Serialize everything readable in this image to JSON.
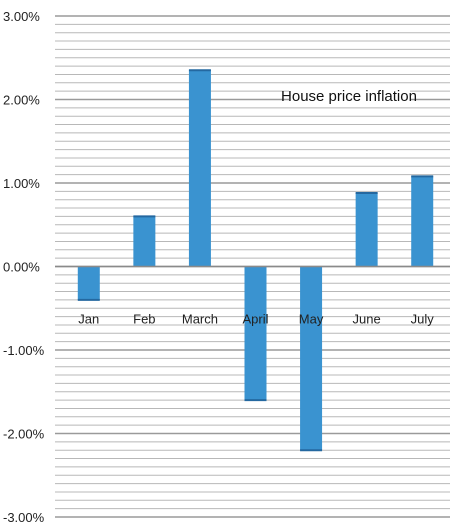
{
  "chart_data": {
    "type": "bar",
    "title": "House price inflation",
    "xlabel": "",
    "ylabel": "",
    "categories": [
      "Jan",
      "Feb",
      "March",
      "April",
      "May",
      "June",
      "July"
    ],
    "values": [
      -0.4,
      0.6,
      2.35,
      -1.6,
      -2.2,
      0.88,
      1.08
    ],
    "ylim": [
      -3.0,
      3.0
    ],
    "y_ticks": [
      3.0,
      2.0,
      1.0,
      0.0,
      -1.0,
      -2.0,
      -3.0
    ],
    "y_tick_labels": [
      "3.00%",
      "2.00%",
      "1.00%",
      "0.00%",
      "-1.00%",
      "-2.00%",
      "-3.00%"
    ],
    "grid": true,
    "colors": {
      "bar": "#3a93d0",
      "bar_edge": "#2468a0",
      "grid": "#b8b8b8",
      "axis": "#8a8a8a"
    }
  }
}
